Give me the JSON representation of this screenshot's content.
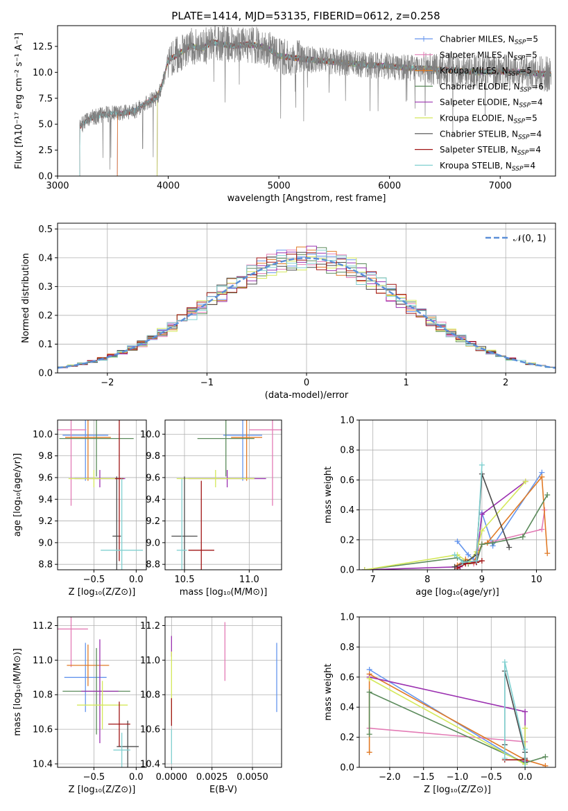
{
  "colors": {
    "chabrier_miles": "#6495ed",
    "salpeter_miles": "#e37bb5",
    "kroupa_miles": "#e07a26",
    "chabrier_elodie": "#5a8a5a",
    "salpeter_elodie": "#9b30b0",
    "kroupa_elodie": "#d4e85a",
    "chabrier_stelib": "#4a4a4a",
    "salpeter_stelib": "#a01515",
    "kroupa_stelib": "#80d0d0",
    "data": "#808080"
  },
  "legend_spectrum": [
    {
      "key": "chabrier_miles",
      "base": "Chabrier MILES, N",
      "sub": "SSP",
      "tail": "=5"
    },
    {
      "key": "salpeter_miles",
      "base": "Salpeter MILES, N",
      "sub": "SSP",
      "tail": "=5"
    },
    {
      "key": "kroupa_miles",
      "base": "Kroupa MILES, N",
      "sub": "SSP",
      "tail": "=5"
    },
    {
      "key": "chabrier_elodie",
      "base": "Chabrier ELODIE, N",
      "sub": "SSP",
      "tail": "=6"
    },
    {
      "key": "salpeter_elodie",
      "base": "Salpeter ELODIE, N",
      "sub": "SSP",
      "tail": "=4"
    },
    {
      "key": "kroupa_elodie",
      "base": "Kroupa ELODIE, N",
      "sub": "SSP",
      "tail": "=5"
    },
    {
      "key": "chabrier_stelib",
      "base": "Chabrier STELIB, N",
      "sub": "SSP",
      "tail": "=4"
    },
    {
      "key": "salpeter_stelib",
      "base": "Salpeter STELIB, N",
      "sub": "SSP",
      "tail": "=4"
    },
    {
      "key": "kroupa_stelib",
      "base": "Kroupa STELIB, N",
      "sub": "SSP",
      "tail": "=4"
    }
  ],
  "chart_data": [
    {
      "type": "line",
      "title": "PLATE=1414, MJD=53135, FIBERID=0612, z=0.258",
      "xlabel": "wavelength [Angstrom, rest frame]",
      "ylabel": "Flux [fλ10⁻¹⁷ erg cm⁻² s⁻¹ A⁻¹]",
      "xlim": [
        3000,
        7500
      ],
      "ylim": [
        0,
        14.5
      ],
      "xticks": [
        3000,
        4000,
        5000,
        6000,
        7000
      ],
      "yticks": [
        0.0,
        2.5,
        5.0,
        7.5,
        10.0,
        12.5
      ],
      "model_start": {
        "chabrier_miles": 3540,
        "salpeter_miles": 3540,
        "kroupa_miles": 3540,
        "chabrier_elodie": 3900,
        "salpeter_elodie": 3900,
        "kroupa_elodie": 3900,
        "chabrier_stelib": 3200,
        "salpeter_stelib": 3200,
        "kroupa_stelib": 3200
      },
      "model_shape": {
        "x": [
          3200,
          3300,
          3400,
          3500,
          3600,
          3700,
          3800,
          3900,
          3950,
          4000,
          4100,
          4200,
          4300,
          4400,
          4500,
          4600,
          4700,
          4800,
          4900,
          5000,
          5200,
          5400,
          5600,
          5800,
          6000,
          6200,
          6400,
          6600,
          6800,
          7000,
          7200,
          7450
        ],
        "y": [
          4.8,
          5.6,
          5.9,
          6.0,
          6.1,
          6.3,
          7.0,
          7.6,
          9.0,
          11.2,
          11.8,
          12.6,
          12.3,
          12.9,
          12.7,
          12.5,
          12.7,
          12.6,
          12.3,
          11.6,
          11.3,
          11.1,
          10.9,
          10.7,
          10.6,
          10.4,
          10.3,
          10.2,
          10.0,
          10.1,
          10.0,
          9.8
        ]
      }
    },
    {
      "type": "bar",
      "xlabel": "(data-model)/error",
      "ylabel": "Normed distribution",
      "xlim": [
        -2.5,
        2.5
      ],
      "ylim": [
        0,
        0.52
      ],
      "xticks": [
        -2,
        -1,
        0,
        1,
        2
      ],
      "yticks": [
        0.0,
        0.1,
        0.2,
        0.3,
        0.4,
        0.5
      ],
      "legend": "𝒩(0, 1)",
      "bin_width": 0.1
    },
    {
      "type": "scatter",
      "xlabel": "Z [log₁₀(Z/Z⊙)]",
      "ylabel": "age  [log₁₀(age/yr)]",
      "xlim": [
        -0.93,
        0.12
      ],
      "ylim": [
        8.75,
        10.13
      ],
      "xticks": [
        -0.5,
        0.0
      ],
      "yticks": [
        8.8,
        9.0,
        9.2,
        9.4,
        9.6,
        9.8,
        10.0
      ],
      "points": [
        {
          "key": "chabrier_miles",
          "x": -0.6,
          "xerr": 0.27,
          "y": 9.99,
          "yerr": 0.42
        },
        {
          "key": "salpeter_miles",
          "x": -0.77,
          "xerr": 0.18,
          "y": 10.04,
          "yerr": 0.7
        },
        {
          "key": "kroupa_miles",
          "x": -0.57,
          "xerr": 0.27,
          "y": 9.97,
          "yerr": 0.4
        },
        {
          "key": "chabrier_elodie",
          "x": -0.47,
          "xerr": 0.44,
          "y": 9.96,
          "yerr": 0.35
        },
        {
          "key": "salpeter_elodie",
          "x": -0.43,
          "xerr": 0.3,
          "y": 9.59,
          "yerr": 0.08
        },
        {
          "key": "kroupa_elodie",
          "x": -0.5,
          "xerr": 0.3,
          "y": 9.59,
          "yerr": 0.08
        },
        {
          "key": "chabrier_stelib",
          "x": -0.23,
          "xerr": 0.05,
          "y": 9.06,
          "yerr": 0.55
        },
        {
          "key": "salpeter_stelib",
          "x": -0.2,
          "xerr": 0.05,
          "y": 9.59,
          "yerr": 0.76
        },
        {
          "key": "kroupa_stelib",
          "x": -0.17,
          "xerr": 0.25,
          "y": 8.93,
          "yerr": 0.66
        }
      ]
    },
    {
      "type": "scatter",
      "xlabel": "mass [log₁₀(M/M⊙)]",
      "xlim": [
        10.35,
        11.25
      ],
      "ylim": [
        8.75,
        10.13
      ],
      "xticks": [
        10.5,
        11.0
      ],
      "yticks": [
        8.8,
        9.0,
        9.2,
        9.4,
        9.6,
        9.8,
        10.0
      ],
      "points": [
        {
          "key": "chabrier_miles",
          "x": 10.95,
          "xerr": 0.15,
          "y": 9.99,
          "yerr": 0.42
        },
        {
          "key": "salpeter_miles",
          "x": 11.18,
          "xerr": 0.18,
          "y": 10.04,
          "yerr": 0.7
        },
        {
          "key": "kroupa_miles",
          "x": 10.98,
          "xerr": 0.12,
          "y": 9.97,
          "yerr": 0.4
        },
        {
          "key": "chabrier_elodie",
          "x": 10.82,
          "xerr": 0.22,
          "y": 9.96,
          "yerr": 0.35
        },
        {
          "key": "salpeter_elodie",
          "x": 10.83,
          "xerr": 0.3,
          "y": 9.59,
          "yerr": 0.08
        },
        {
          "key": "kroupa_elodie",
          "x": 10.74,
          "xerr": 0.3,
          "y": 9.59,
          "yerr": 0.08
        },
        {
          "key": "chabrier_stelib",
          "x": 10.5,
          "xerr": 0.1,
          "y": 9.06,
          "yerr": 0.55
        },
        {
          "key": "salpeter_stelib",
          "x": 10.63,
          "xerr": 0.1,
          "y": 8.93,
          "yerr": 0.64
        },
        {
          "key": "kroupa_stelib",
          "x": 10.48,
          "xerr": 0.04,
          "y": 8.93,
          "yerr": 0.66
        }
      ]
    },
    {
      "type": "line",
      "xlabel": "age  [log₁₀(age/yr)]",
      "ylabel": "mass weight",
      "xlim": [
        6.75,
        10.35
      ],
      "ylim": [
        0,
        1
      ],
      "xticks": [
        7,
        8,
        9,
        10
      ],
      "yticks": [
        0.0,
        0.2,
        0.4,
        0.6,
        0.8,
        1.0
      ],
      "series": [
        {
          "key": "chabrier_miles",
          "x": [
            8.55,
            8.75,
            8.85,
            8.9,
            9.0,
            9.2,
            10.1
          ],
          "y": [
            0.19,
            0.1,
            0.07,
            0.05,
            0.38,
            0.16,
            0.65
          ]
        },
        {
          "key": "salpeter_miles",
          "x": [
            8.55,
            8.7,
            8.85,
            9.0,
            9.1,
            10.1,
            10.15
          ],
          "y": [
            0.03,
            0.06,
            0.04,
            0.17,
            0.18,
            0.27,
            0.4
          ]
        },
        {
          "key": "kroupa_miles",
          "x": [
            8.55,
            8.7,
            8.85,
            9.0,
            9.1,
            10.1,
            10.2
          ],
          "y": [
            0.03,
            0.07,
            0.05,
            0.17,
            0.18,
            0.62,
            0.11
          ]
        },
        {
          "key": "chabrier_elodie",
          "x": [
            6.85,
            8.55,
            8.75,
            8.9,
            9.0,
            9.2,
            9.75,
            10.2
          ],
          "y": [
            0.0,
            0.08,
            0.04,
            0.05,
            0.17,
            0.18,
            0.22,
            0.5
          ]
        },
        {
          "key": "salpeter_elodie",
          "x": [
            6.85,
            8.6,
            8.75,
            8.9,
            9.0,
            9.8
          ],
          "y": [
            0.0,
            0.02,
            0.05,
            0.06,
            0.37,
            0.59
          ]
        },
        {
          "key": "kroupa_elodie",
          "x": [
            6.85,
            8.55,
            8.75,
            8.9,
            9.0,
            9.8
          ],
          "y": [
            0.0,
            0.1,
            0.05,
            0.12,
            0.26,
            0.59
          ]
        },
        {
          "key": "chabrier_stelib",
          "x": [
            8.5,
            8.7,
            8.9,
            9.0,
            9.5
          ],
          "y": [
            0.02,
            0.05,
            0.1,
            0.64,
            0.15
          ]
        },
        {
          "key": "salpeter_stelib",
          "x": [
            8.55,
            8.7,
            8.9,
            9.0
          ],
          "y": [
            0.01,
            0.04,
            0.05,
            0.06
          ]
        },
        {
          "key": "kroupa_stelib",
          "x": [
            8.5,
            8.65,
            8.9,
            9.0
          ],
          "y": [
            0.1,
            0.05,
            0.06,
            0.7
          ]
        }
      ]
    },
    {
      "type": "scatter",
      "xlabel": "Z [log₁₀(Z/Z⊙)]",
      "ylabel": "mass [log₁₀(M/M⊙)]",
      "xlim": [
        -0.93,
        0.12
      ],
      "ylim": [
        10.38,
        11.25
      ],
      "xticks": [
        -0.5,
        0.0
      ],
      "yticks": [
        10.4,
        10.6,
        10.8,
        11.0,
        11.2
      ],
      "points": [
        {
          "key": "chabrier_miles",
          "x": -0.6,
          "xerr": 0.25,
          "y": 10.9,
          "yerr": 0.2
        },
        {
          "key": "salpeter_miles",
          "x": -0.77,
          "xerr": 0.2,
          "y": 11.18,
          "yerr": 0.22
        },
        {
          "key": "kroupa_miles",
          "x": -0.57,
          "xerr": 0.25,
          "y": 10.97,
          "yerr": 0.12
        },
        {
          "key": "chabrier_elodie",
          "x": -0.47,
          "xerr": 0.4,
          "y": 10.82,
          "yerr": 0.25
        },
        {
          "key": "salpeter_elodie",
          "x": -0.43,
          "xerr": 0.22,
          "y": 10.82,
          "yerr": 0.3
        },
        {
          "key": "kroupa_elodie",
          "x": -0.4,
          "xerr": 0.3,
          "y": 10.74,
          "yerr": 0.14
        },
        {
          "key": "chabrier_stelib",
          "x": -0.1,
          "xerr": 0.13,
          "y": 10.5,
          "yerr": 0.15
        },
        {
          "key": "salpeter_stelib",
          "x": -0.2,
          "xerr": 0.13,
          "y": 10.63,
          "yerr": 0.13
        },
        {
          "key": "kroupa_stelib",
          "x": -0.17,
          "xerr": 0.1,
          "y": 10.48,
          "yerr": 0.1
        }
      ]
    },
    {
      "type": "scatter",
      "xlabel": "E(B-V)",
      "xlim": [
        -0.0004,
        0.0068
      ],
      "ylim": [
        10.38,
        11.25
      ],
      "xticks": [
        0.0,
        0.0025,
        0.005
      ],
      "yticks": [
        10.4,
        10.6,
        10.8,
        11.0,
        11.2
      ],
      "xtick_labels": [
        "0.0000",
        "0.0025",
        "0.0050"
      ],
      "points": [
        {
          "key": "chabrier_miles",
          "x": 0.0065,
          "xerr": 0,
          "y": 10.9,
          "yerr": 0.2
        },
        {
          "key": "salpeter_miles",
          "x": 0.0033,
          "xerr": 0,
          "y": 11.05,
          "yerr": 0.17
        },
        {
          "key": "salpeter_elodie",
          "x": 0.0,
          "xerr": 0,
          "y": 11.08,
          "yerr": 0.06
        },
        {
          "key": "kroupa_elodie",
          "x": 0.0,
          "xerr": 0,
          "y": 10.85,
          "yerr": 0.2
        },
        {
          "key": "salpeter_stelib",
          "x": 0.0,
          "xerr": 0,
          "y": 10.7,
          "yerr": 0.08
        },
        {
          "key": "kroupa_stelib",
          "x": 0.0,
          "xerr": 0,
          "y": 10.5,
          "yerr": 0.1
        }
      ]
    },
    {
      "type": "line",
      "xlabel": "Z [log₁₀(Z/Z⊙)]",
      "ylabel": "mass weight",
      "xlim": [
        -2.45,
        0.45
      ],
      "ylim": [
        0,
        1
      ],
      "xticks": [
        -2.0,
        -1.5,
        -1.0,
        -0.5,
        0.0
      ],
      "yticks": [
        0.0,
        0.2,
        0.4,
        0.6,
        0.8,
        1.0
      ],
      "series": [
        {
          "key": "chabrier_miles",
          "x": [
            -2.3,
            0.0,
            0.0
          ],
          "y": [
            0.65,
            0.02,
            0.05
          ]
        },
        {
          "key": "salpeter_miles",
          "x": [
            -2.3,
            0.0,
            0.0
          ],
          "y": [
            0.26,
            0.17,
            0.04
          ]
        },
        {
          "key": "kroupa_miles",
          "x": [
            -2.3,
            -2.3,
            0.0,
            0.3
          ],
          "y": [
            0.1,
            0.62,
            0.05,
            0.01
          ]
        },
        {
          "key": "chabrier_elodie",
          "x": [
            -2.3,
            -2.3,
            0.0,
            0.3
          ],
          "y": [
            0.22,
            0.5,
            0.03,
            0.07
          ]
        },
        {
          "key": "salpeter_elodie",
          "x": [
            -2.3,
            0.0,
            0.0
          ],
          "y": [
            0.6,
            0.37,
            0.04
          ]
        },
        {
          "key": "kroupa_elodie",
          "x": [
            -2.3,
            0.0,
            0.0
          ],
          "y": [
            0.59,
            0.02,
            0.26
          ]
        },
        {
          "key": "chabrier_stelib",
          "x": [
            -0.3,
            -0.3,
            0.0,
            0.0
          ],
          "y": [
            0.15,
            0.64,
            0.1,
            0.06
          ]
        },
        {
          "key": "salpeter_stelib",
          "x": [
            -0.3,
            0.0
          ],
          "y": [
            0.05,
            0.05
          ]
        },
        {
          "key": "kroupa_stelib",
          "x": [
            -0.3,
            -0.3,
            0.0,
            0.0
          ],
          "y": [
            0.06,
            0.7,
            0.12,
            0.0
          ]
        }
      ]
    }
  ]
}
